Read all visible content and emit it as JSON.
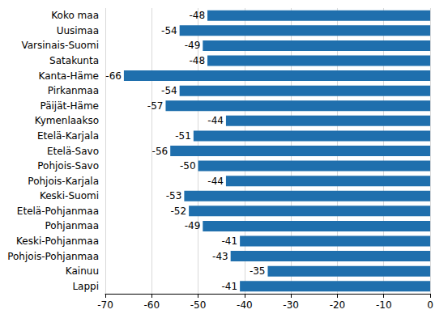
{
  "chart_data": {
    "type": "bar",
    "orientation": "horizontal",
    "categories": [
      "Koko maa",
      "Uusimaa",
      "Varsinais-Suomi",
      "Satakunta",
      "Kanta-Häme",
      "Pirkanmaa",
      "Päijät-Häme",
      "Kymenlaakso",
      "Etelä-Karjala",
      "Etelä-Savo",
      "Pohjois-Savo",
      "Pohjois-Karjala",
      "Keski-Suomi",
      "Etelä-Pohjanmaa",
      "Pohjanmaa",
      "Keski-Pohjanmaa",
      "Pohjois-Pohjanmaa",
      "Kainuu",
      "Lappi"
    ],
    "values": [
      -48,
      -54,
      -49,
      -48,
      -66,
      -54,
      -57,
      -44,
      -51,
      -56,
      -50,
      -44,
      -53,
      -52,
      -49,
      -41,
      -43,
      -35,
      -41
    ],
    "color": "#1f6fad",
    "xlim": [
      -70,
      0
    ],
    "xticks": [
      -70,
      -60,
      -50,
      -40,
      -30,
      -20,
      -10,
      0
    ],
    "grid": true,
    "data_labels": true
  }
}
